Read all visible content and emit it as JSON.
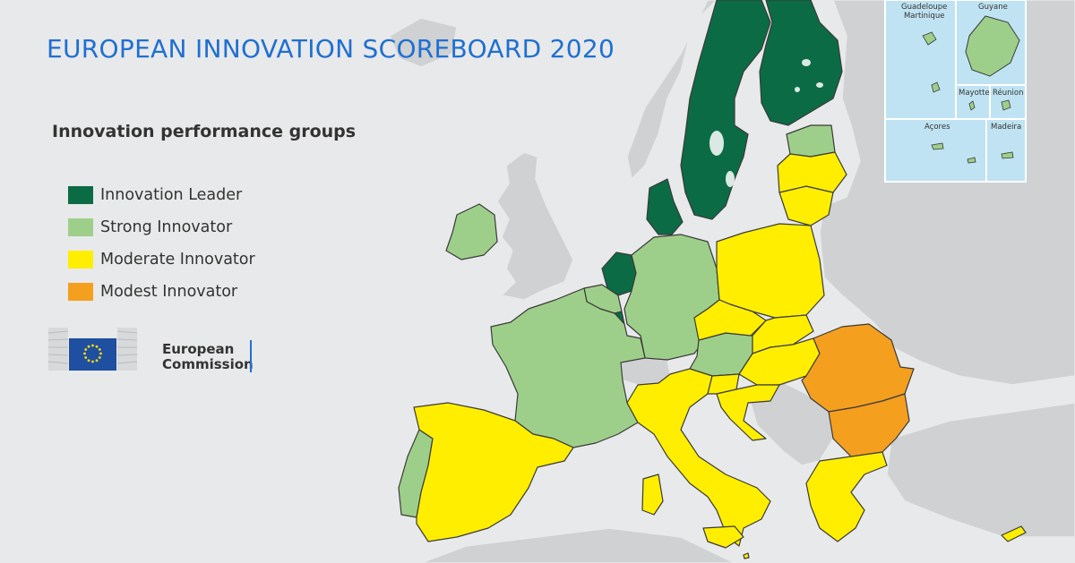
{
  "title": "EUROPEAN INNOVATION SCOREBOARD 2020",
  "legend": {
    "title": "Innovation performance groups",
    "items": [
      {
        "label": "Innovation Leader",
        "color": "#0b6b45"
      },
      {
        "label": "Strong Innovator",
        "color": "#9ecf8a"
      },
      {
        "label": "Moderate Innovator",
        "color": "#ffee00"
      },
      {
        "label": "Modest Innovator",
        "color": "#f59f1f"
      }
    ]
  },
  "logo": {
    "line1": "European",
    "line2": "Commission"
  },
  "insets": {
    "guadeloupe_martinique": "Guadeloupe\nMartinique",
    "guyane": "Guyane",
    "mayotte": "Mayotte",
    "reunion": "Réunion",
    "acores": "Açores",
    "madeira": "Madeira"
  },
  "colors": {
    "sea": "#e8e9ea",
    "non_eu_land": "#cfd1d3",
    "border": "#3a3a3a",
    "water": "#bfe3f2"
  }
}
